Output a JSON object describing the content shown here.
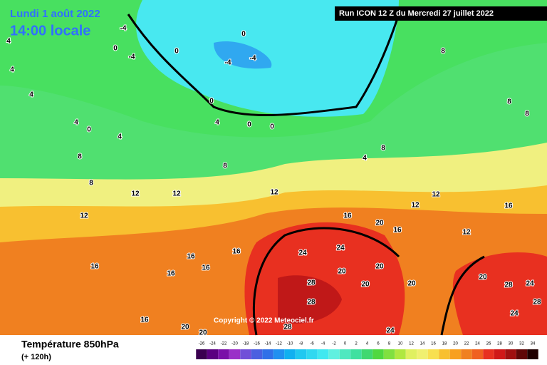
{
  "header": {
    "date": "Lundi 1 août 2022",
    "time": "14:00 locale",
    "run": "Run ICON 12 Z du Mercredi 27 juillet 2022",
    "copyright": "Copyright © 2022 Meteociel.fr"
  },
  "footer": {
    "title": "Température 850hPa",
    "lead": "(+ 120h)"
  },
  "legend": {
    "ticks": [
      -26,
      -24,
      -22,
      -20,
      -18,
      -16,
      -14,
      -12,
      -10,
      -8,
      -6,
      -4,
      -2,
      0,
      2,
      4,
      6,
      8,
      10,
      12,
      14,
      16,
      18,
      20,
      22,
      24,
      26,
      28,
      30,
      32,
      34
    ],
    "colors": [
      "#3a0050",
      "#5a0080",
      "#7a10a8",
      "#9a30c8",
      "#7050d8",
      "#4a60e0",
      "#3070e8",
      "#2090f0",
      "#10b0f0",
      "#20c8f0",
      "#30d8f0",
      "#40e8f0",
      "#60f0e0",
      "#50e8c0",
      "#40e0a0",
      "#40d870",
      "#50d840",
      "#80e040",
      "#b0e840",
      "#e0f060",
      "#f0f070",
      "#f8e050",
      "#f8c030",
      "#f8a020",
      "#f08020",
      "#f06020",
      "#e83020",
      "#d01818",
      "#a01010",
      "#600808",
      "#200000"
    ]
  },
  "contour_labels": [
    -4,
    -4,
    0,
    0,
    0,
    -4,
    -4,
    0,
    0,
    0,
    0,
    4,
    4,
    4,
    4,
    4,
    4,
    4,
    8,
    8,
    8,
    8,
    8,
    8,
    8,
    12,
    12,
    12,
    12,
    12,
    12,
    12,
    16,
    16,
    16,
    16,
    16,
    16,
    16,
    16,
    16,
    20,
    20,
    20,
    20,
    20,
    20,
    20,
    20,
    24,
    24,
    24,
    24,
    24,
    28,
    28,
    28,
    28,
    28
  ]
}
